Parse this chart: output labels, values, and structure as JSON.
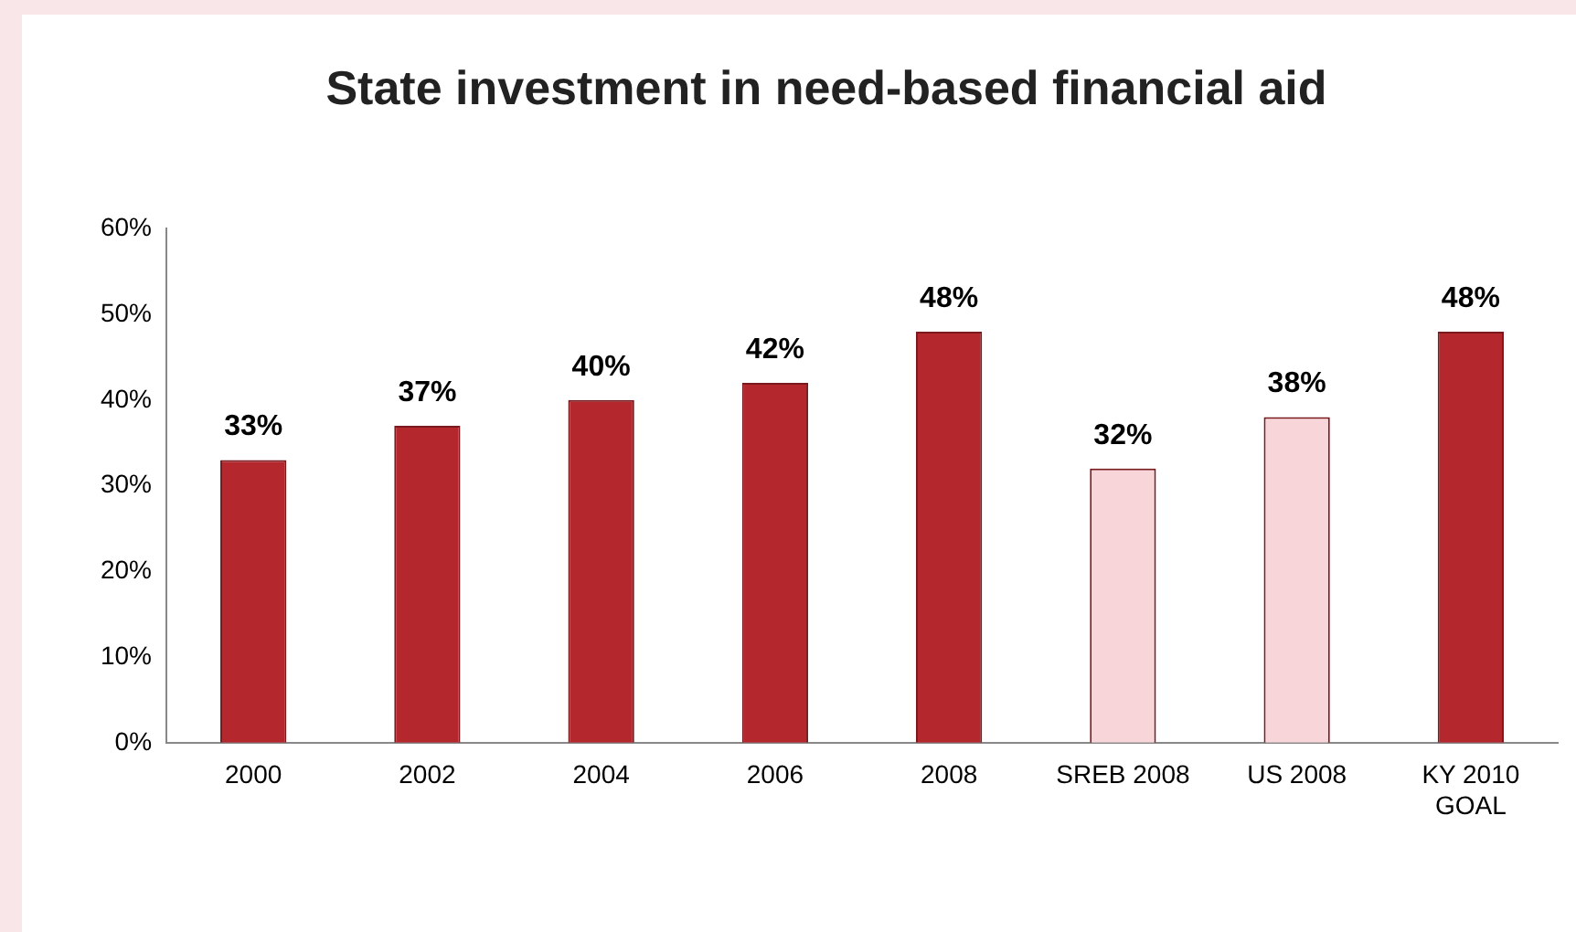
{
  "chart_data": {
    "type": "bar",
    "title": "State investment in need-based financial aid",
    "categories": [
      "2000",
      "2002",
      "2004",
      "2006",
      "2008",
      "SREB 2008",
      "US 2008",
      "KY 2010 GOAL"
    ],
    "values": [
      33,
      37,
      40,
      42,
      48,
      32,
      38,
      48
    ],
    "colors": [
      "#b3272d",
      "#b3272d",
      "#b3272d",
      "#b3272d",
      "#b3272d",
      "#f7d5d8",
      "#f7d5d8",
      "#b3272d"
    ],
    "value_labels": [
      "33%",
      "37%",
      "40%",
      "42%",
      "48%",
      "32%",
      "38%",
      "48%"
    ],
    "ylim": [
      0,
      60
    ],
    "yticks": [
      {
        "value": 0,
        "label": "0%"
      },
      {
        "value": 10,
        "label": "10%"
      },
      {
        "value": 20,
        "label": "20%"
      },
      {
        "value": 30,
        "label": "30%"
      },
      {
        "value": 40,
        "label": "40%"
      },
      {
        "value": 50,
        "label": "50%"
      },
      {
        "value": 60,
        "label": "60%"
      }
    ],
    "grid": false,
    "legend": false
  }
}
